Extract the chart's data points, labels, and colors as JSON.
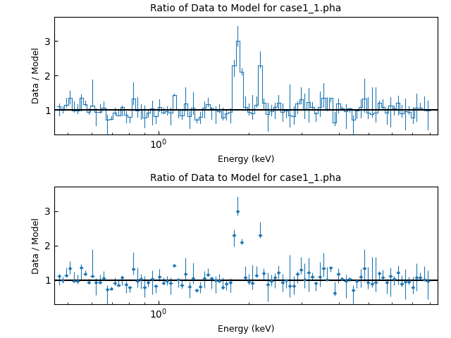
{
  "title": "Ratio of Data to Model for case1_1.pha",
  "xlabel": "Energy (keV)",
  "ylabel": "Data / Model",
  "color": "#1f77b4",
  "linewidth": 0.8,
  "ylim": [
    0.3,
    3.7
  ],
  "xlim": [
    0.45,
    8.5
  ],
  "hline_y": 1.0,
  "seed": 42,
  "n_bins": 100,
  "e_min": 0.46,
  "e_max": 8.0,
  "spike_energy": 1.85,
  "spike_val": 3.0,
  "spike_val2": 2.3,
  "spike_val3": 2.1
}
